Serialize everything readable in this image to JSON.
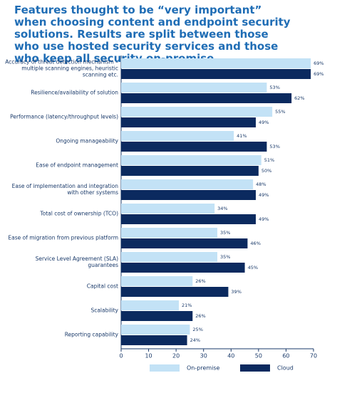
{
  "chart_data": {
    "type": "hbar",
    "title": "Features thought to be “very important” when choosing content and endpoint security solutions. Results are split between those who use hosted security services and those who keep all security on-premise",
    "categories": [
      "Accuracy of threat detection mechanism – multiple scanning engines, heuristic scanning etc.",
      "Resilience/availability of solution",
      "Performance (latency/throughput levels)",
      "Ongoing manageability",
      "Ease of endpoint management",
      "Ease of implementation and integration with other systems",
      "Total cost of ownership (TCO)",
      "Ease of migration from previous platform",
      "Service Level Agreement (SLA) guarantees",
      "Capital cost",
      "Scalability",
      "Reporting capability"
    ],
    "series": [
      {
        "name": "On-premise",
        "color": "#c3e2f6",
        "values": [
          69,
          53,
          55,
          41,
          51,
          48,
          34,
          35,
          35,
          26,
          21,
          25
        ],
        "value_labels": [
          "69%",
          "53%",
          "55%",
          "41%",
          "51%",
          "48%",
          "34%",
          "35%",
          "35%",
          "26%",
          "21%",
          "25%"
        ]
      },
      {
        "name": "Cloud",
        "color": "#0b2a5f",
        "values": [
          69,
          62,
          49,
          53,
          50,
          49,
          49,
          46,
          45,
          39,
          26,
          24
        ],
        "value_labels": [
          "69%",
          "62%",
          "49%",
          "53%",
          "50%",
          "49%",
          "49%",
          "46%",
          "45%",
          "39%",
          "26%",
          "24%"
        ]
      }
    ],
    "xlim": [
      0,
      70
    ],
    "xticks": [
      0,
      10,
      20,
      30,
      40,
      50,
      60,
      70
    ]
  }
}
